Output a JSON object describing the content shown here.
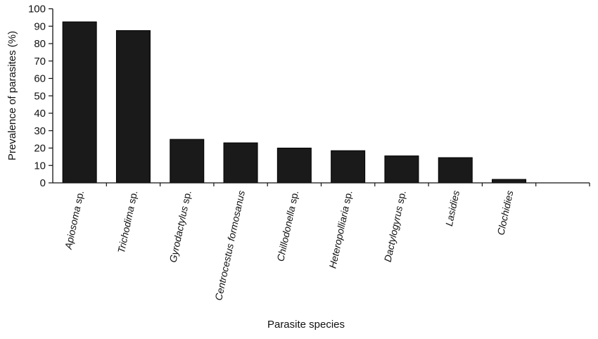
{
  "chart_data": {
    "type": "bar",
    "title": "",
    "xlabel": "Parasite species",
    "ylabel": "Prevalence of parasites (%)",
    "ylim": [
      0,
      100
    ],
    "yticks": [
      0,
      10,
      20,
      30,
      40,
      50,
      60,
      70,
      80,
      90,
      100
    ],
    "grid": false,
    "categories": [
      {
        "name": "Apiosoma",
        "suffix": " sp."
      },
      {
        "name": "Trichodima",
        "suffix": " sp."
      },
      {
        "name": "Gyrodactylus",
        "suffix": " sp."
      },
      {
        "name": "Centrocestus formosanus",
        "suffix": ""
      },
      {
        "name": "Chillodonella",
        "suffix": " sp."
      },
      {
        "name": "Heteropolliaria",
        "suffix": " sp."
      },
      {
        "name": "Dactylogyrus",
        "suffix": " sp."
      },
      {
        "name": "Lasidies",
        "suffix": ""
      },
      {
        "name": "Clochidies",
        "suffix": ""
      },
      {
        "name": "",
        "suffix": ""
      }
    ],
    "values": [
      92.5,
      87.5,
      25,
      23,
      20,
      18.5,
      15.5,
      14.5,
      2,
      null
    ],
    "bar_color": "#1a1a1a"
  }
}
